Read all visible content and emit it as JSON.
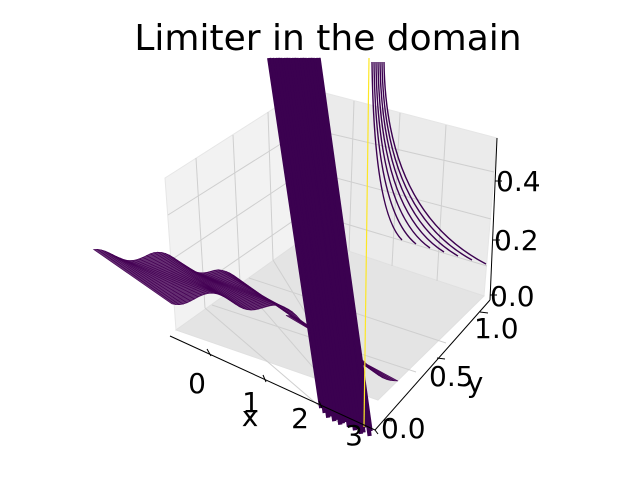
{
  "chart_data": {
    "type": "surface3d",
    "title": "Limiter in the domain",
    "xlabel": "x",
    "ylabel": "y",
    "zlabel": "",
    "x_ticks": [
      "0",
      "1",
      "2",
      "3"
    ],
    "y_ticks": [
      "0.0",
      "0.5",
      "1.0"
    ],
    "z_ticks": [
      "0.0",
      "0.2",
      "0.4"
    ],
    "xlim": [
      -0.4,
      3.1
    ],
    "ylim": [
      0.0,
      1.0
    ],
    "zlim": [
      0.0,
      0.5
    ],
    "grid": true,
    "colormap": "viridis",
    "surface_color": "#440154",
    "spike_color": "#3b0150",
    "highlight_color": "#fde725",
    "spike_x_range": [
      1.85,
      2.6
    ],
    "base_profile": [
      {
        "x": -0.4,
        "z": 0.1
      },
      {
        "x": 0.0,
        "z": 0.14
      },
      {
        "x": 0.5,
        "z": 0.18
      },
      {
        "x": 1.0,
        "z": 0.2
      },
      {
        "x": 1.5,
        "z": 0.22
      },
      {
        "x": 2.0,
        "z": 0.2
      },
      {
        "x": 2.5,
        "z": 0.16
      },
      {
        "x": 3.1,
        "z": 0.14
      }
    ]
  }
}
